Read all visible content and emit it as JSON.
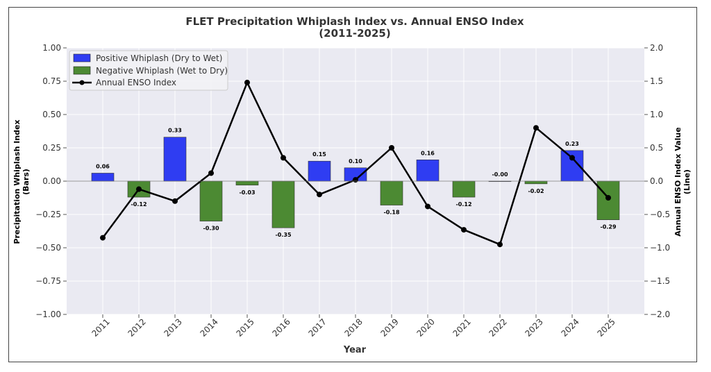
{
  "chart_data": {
    "type": "bar+line",
    "title_line1": "FLET Precipitation Whiplash Index vs. Annual ENSO Index",
    "title_line2": "(2011-2025)",
    "xlabel": "Year",
    "ylabel_left_line1": "Precipitation Whiplash Index",
    "ylabel_left_line2": "(Bars)",
    "ylabel_right_line1": "Annual ENSO Index Value",
    "ylabel_right_line2": "(Line)",
    "categories": [
      "2011",
      "2012",
      "2013",
      "2014",
      "2015",
      "2016",
      "2017",
      "2018",
      "2019",
      "2020",
      "2021",
      "2022",
      "2023",
      "2024",
      "2025"
    ],
    "whiplash_values": [
      0.06,
      -0.12,
      0.33,
      -0.3,
      -0.03,
      -0.35,
      0.15,
      0.1,
      -0.18,
      0.16,
      -0.12,
      -0.0,
      -0.02,
      0.23,
      -0.29
    ],
    "whiplash_labels": [
      "0.06",
      "-0.12",
      "0.33",
      "-0.30",
      "-0.03",
      "-0.35",
      "0.15",
      "0.10",
      "-0.18",
      "0.16",
      "-0.12",
      "-0.00",
      "-0.02",
      "0.23",
      "-0.29"
    ],
    "enso_values": [
      -0.85,
      -0.12,
      -0.3,
      0.12,
      1.48,
      0.35,
      -0.2,
      0.02,
      0.5,
      -0.38,
      -0.73,
      -0.95,
      0.8,
      0.35,
      -0.25
    ],
    "ylim_left": [
      -1.0,
      1.0
    ],
    "ylim_right": [
      -2.0,
      2.0
    ],
    "yticks_left": [
      "1.00",
      "0.75",
      "0.50",
      "0.25",
      "0.00",
      "−0.25",
      "−0.50",
      "−0.75",
      "−1.00"
    ],
    "yticks_right": [
      "2.0",
      "1.5",
      "1.0",
      "0.5",
      "0.0",
      "−0.5",
      "−1.0",
      "−1.5",
      "−2.0"
    ],
    "grid": true,
    "legend_position": "top-left",
    "legend": {
      "positive": "Positive Whiplash (Dry to Wet)",
      "negative": "Negative Whiplash (Wet to Dry)",
      "enso": "Annual ENSO Index"
    },
    "colors": {
      "positive": "#2f3df2",
      "negative": "#4c8a33",
      "line": "#000000",
      "plot_bg": "#eaeaf2"
    }
  }
}
